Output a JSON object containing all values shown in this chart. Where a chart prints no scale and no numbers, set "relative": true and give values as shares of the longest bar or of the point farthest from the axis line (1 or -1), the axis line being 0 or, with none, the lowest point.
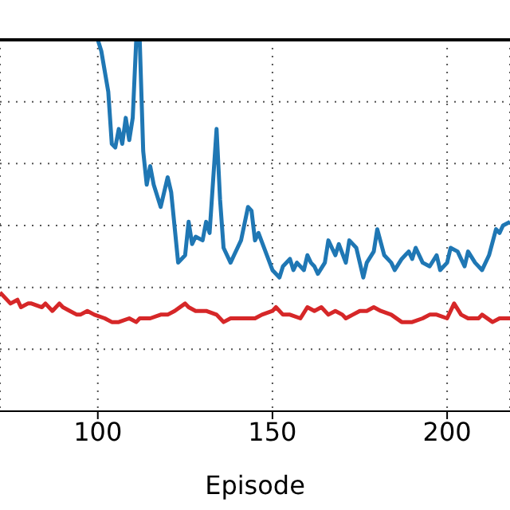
{
  "chart_data": {
    "type": "line",
    "xlabel": "Episode",
    "relative": true,
    "xlim": [
      72,
      218
    ],
    "xticks": [
      100,
      150,
      200
    ],
    "grid": true,
    "marker": "none",
    "line_style": "solid",
    "series": [
      {
        "color": "#1f77b4",
        "x": [
          100,
          101,
          103,
          104,
          105,
          106,
          107,
          108,
          109,
          110,
          111,
          112,
          113,
          114,
          115,
          116,
          118,
          120,
          121,
          123,
          125,
          126,
          127,
          128,
          130,
          131,
          132,
          134,
          135,
          136,
          138,
          139,
          141,
          143,
          144,
          145,
          146,
          148,
          150,
          152,
          153,
          155,
          156,
          157,
          159,
          160,
          161,
          162,
          163,
          165,
          166,
          168,
          169,
          171,
          172,
          174,
          176,
          177,
          179,
          180,
          182,
          184,
          185,
          187,
          189,
          190,
          191,
          193,
          195,
          197,
          198,
          200,
          201,
          203,
          205,
          206,
          208,
          210,
          212,
          214,
          215,
          216,
          218
        ],
        "values": [
          1.0,
          0.97,
          0.86,
          0.72,
          0.71,
          0.76,
          0.72,
          0.79,
          0.73,
          0.79,
          1.0,
          1.0,
          0.7,
          0.61,
          0.66,
          0.61,
          0.55,
          0.63,
          0.59,
          0.4,
          0.42,
          0.51,
          0.45,
          0.47,
          0.46,
          0.51,
          0.48,
          0.76,
          0.57,
          0.44,
          0.4,
          0.42,
          0.46,
          0.55,
          0.54,
          0.46,
          0.48,
          0.43,
          0.38,
          0.36,
          0.39,
          0.41,
          0.38,
          0.4,
          0.38,
          0.42,
          0.4,
          0.39,
          0.37,
          0.4,
          0.46,
          0.42,
          0.45,
          0.4,
          0.46,
          0.44,
          0.36,
          0.4,
          0.43,
          0.49,
          0.42,
          0.4,
          0.38,
          0.41,
          0.43,
          0.41,
          0.44,
          0.4,
          0.39,
          0.42,
          0.38,
          0.4,
          0.44,
          0.43,
          0.39,
          0.43,
          0.4,
          0.38,
          0.42,
          0.49,
          0.48,
          0.5,
          0.51
        ]
      },
      {
        "color": "#d62728",
        "x": [
          72,
          75,
          77,
          78,
          80,
          81,
          84,
          85,
          87,
          89,
          90,
          92,
          94,
          95,
          97,
          99,
          102,
          104,
          106,
          109,
          111,
          112,
          114,
          115,
          118,
          120,
          122,
          125,
          126,
          128,
          130,
          131,
          134,
          136,
          138,
          140,
          143,
          145,
          147,
          150,
          151,
          153,
          155,
          158,
          160,
          162,
          164,
          166,
          168,
          170,
          171,
          173,
          175,
          177,
          179,
          181,
          184,
          187,
          189,
          190,
          193,
          195,
          197,
          200,
          202,
          204,
          206,
          209,
          210,
          213,
          215,
          218
        ],
        "values": [
          0.32,
          0.29,
          0.3,
          0.28,
          0.29,
          0.29,
          0.28,
          0.29,
          0.27,
          0.29,
          0.28,
          0.27,
          0.26,
          0.26,
          0.27,
          0.26,
          0.25,
          0.24,
          0.24,
          0.25,
          0.24,
          0.25,
          0.25,
          0.25,
          0.26,
          0.26,
          0.27,
          0.29,
          0.28,
          0.27,
          0.27,
          0.27,
          0.26,
          0.24,
          0.25,
          0.25,
          0.25,
          0.25,
          0.26,
          0.27,
          0.28,
          0.26,
          0.26,
          0.25,
          0.28,
          0.27,
          0.28,
          0.26,
          0.27,
          0.26,
          0.25,
          0.26,
          0.27,
          0.27,
          0.28,
          0.27,
          0.26,
          0.24,
          0.24,
          0.24,
          0.25,
          0.26,
          0.26,
          0.25,
          0.29,
          0.26,
          0.25,
          0.25,
          0.26,
          0.24,
          0.25,
          0.25
        ]
      }
    ]
  }
}
